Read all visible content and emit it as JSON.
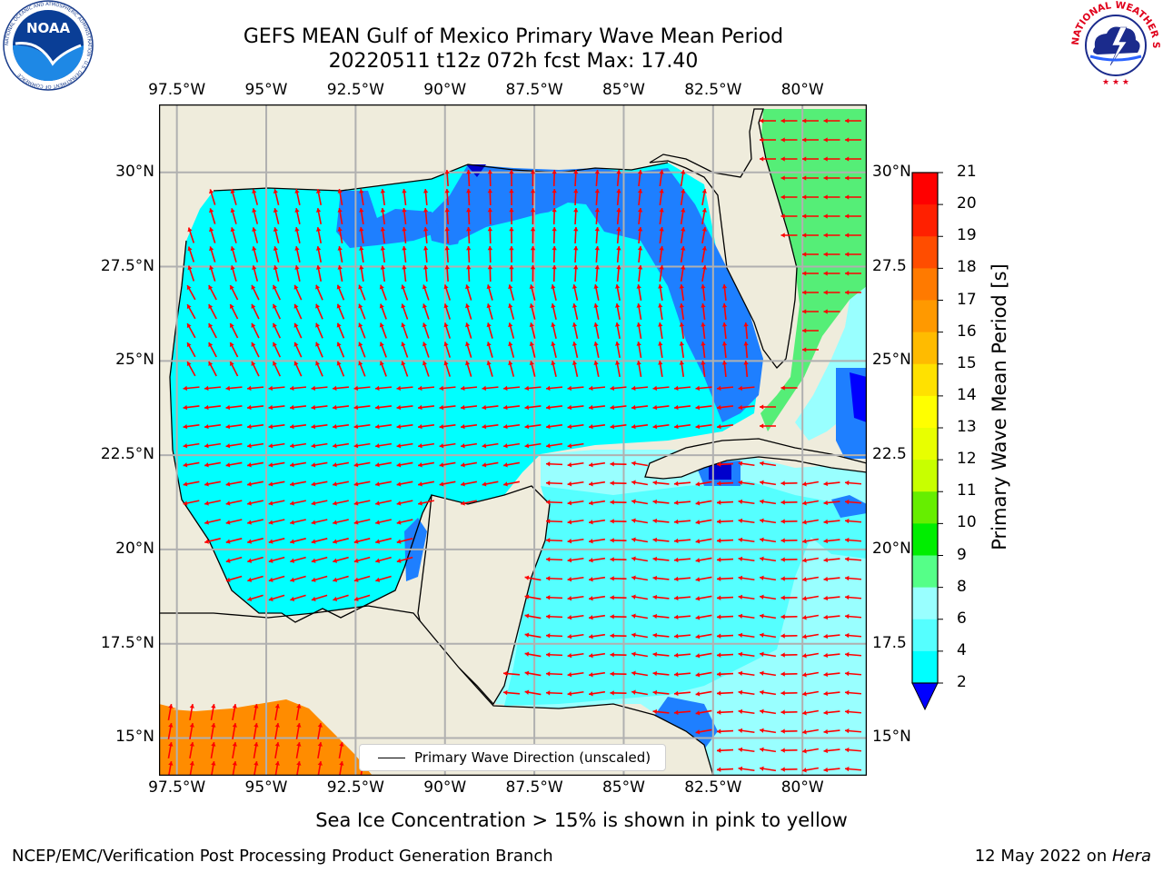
{
  "header": {
    "title_line1": "GEFS MEAN Gulf of Mexico Primary Wave Mean Period",
    "title_line2": "20220511 t12z 072h fcst   Max: 17.40"
  },
  "logos": {
    "noaa_text": "NOAA",
    "noaa_ring": "NATIONAL OCEANIC AND ATMOSPHERIC ADMINISTRATION · U.S. DEPARTMENT OF COMMERCE",
    "nws_ring": "NATIONAL WEATHER SERVICE"
  },
  "map": {
    "lon_ticks": [
      "97.5°W",
      "95°W",
      "92.5°W",
      "90°W",
      "87.5°W",
      "85°W",
      "82.5°W",
      "80°W"
    ],
    "lat_ticks": [
      "30°N",
      "27.5°N",
      "25°N",
      "22.5°N",
      "20°N",
      "17.5°N",
      "15°N"
    ],
    "lat_ticks_right": [
      "30°N",
      "27.5",
      "25°N",
      "22.5",
      "20°N",
      "17.5",
      "15°N"
    ],
    "lon_values": [
      -97.5,
      -95,
      -92.5,
      -90,
      -87.5,
      -85,
      -82.5,
      -80
    ],
    "lat_values": [
      30,
      27.5,
      25,
      22.5,
      20,
      17.5,
      15
    ],
    "extent": {
      "lon": [
        -98,
        -78.2
      ],
      "lat": [
        14,
        31.8
      ]
    },
    "legend_label": "Primary Wave Direction (unscaled)",
    "arrow_color": "#ff0000",
    "land_color": "#efecdc",
    "ocean_main_color": "#00ffff",
    "grid": true
  },
  "colorbar": {
    "title": "Primary Wave Mean Period [s]",
    "levels": [
      "21",
      "20",
      "19",
      "18",
      "17",
      "16",
      "15",
      "14",
      "13",
      "12",
      "11",
      "10",
      "9",
      "8",
      "6",
      "4",
      "2"
    ],
    "colors": [
      "#ff0000",
      "#ff2000",
      "#ff4d00",
      "#ff7a00",
      "#ff9900",
      "#ffbb00",
      "#ffe100",
      "#ffff00",
      "#e8ff00",
      "#c8ff00",
      "#66ee00",
      "#00ee00",
      "#55ff88",
      "#99ffff",
      "#55ffff",
      "#00ffff",
      "#0099ff",
      "#0000ff"
    ]
  },
  "notes": {
    "sea_ice": "Sea Ice Concentration > 15% is shown in pink to yellow"
  },
  "footer": {
    "left": "NCEP/EMC/Verification Post Processing Product Generation Branch",
    "right_date": "12 May 2022 on ",
    "right_host": "Hera"
  }
}
